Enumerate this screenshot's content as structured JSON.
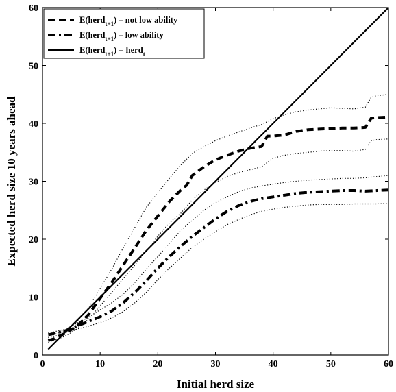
{
  "chart_data": {
    "type": "line",
    "title": "",
    "xlabel": "Initial herd size",
    "ylabel": "Expected herd size 10 years ahead",
    "xlim": [
      0,
      60
    ],
    "ylim": [
      0,
      60
    ],
    "xticks": [
      0,
      10,
      20,
      30,
      40,
      50,
      60
    ],
    "yticks": [
      0,
      10,
      20,
      30,
      40,
      50,
      60
    ],
    "grid": false,
    "legend_position": "top-left",
    "legend": [
      {
        "base": "E(herd",
        "sub": "t+1",
        "rest": ") – not low ability",
        "sub2": "",
        "style": "dashed"
      },
      {
        "base": "E(herd",
        "sub": "t+1",
        "rest": ") – low ability",
        "sub2": "",
        "style": "dashdot"
      },
      {
        "base": "E(herd",
        "sub": "t+1",
        "rest": ") = herd",
        "sub2": "t",
        "style": "solid"
      }
    ],
    "series": [
      {
        "key": "not_low",
        "style": "dashed",
        "x": [
          1,
          2,
          4,
          6,
          8,
          10,
          12,
          14,
          16,
          18,
          20,
          22,
          24,
          25,
          26,
          28,
          30,
          32,
          34,
          36,
          38,
          39,
          40,
          42,
          44,
          46,
          48,
          50,
          52,
          54,
          56,
          57,
          58,
          60
        ],
        "y": [
          2.5,
          2.8,
          3.8,
          5.0,
          7.0,
          9.8,
          12.5,
          15.5,
          18.5,
          21.5,
          24.0,
          26.5,
          28.5,
          29.3,
          31.0,
          32.5,
          33.7,
          34.5,
          35.2,
          35.7,
          36.0,
          37.8,
          37.8,
          38.0,
          38.6,
          38.9,
          39.0,
          39.1,
          39.2,
          39.2,
          39.3,
          40.9,
          41.0,
          41.1
        ]
      },
      {
        "key": "not_low_upper",
        "style": "dotted",
        "x": [
          1,
          2,
          4,
          6,
          8,
          10,
          12,
          14,
          16,
          18,
          20,
          22,
          24,
          26,
          28,
          30,
          32,
          34,
          36,
          38,
          40,
          42,
          44,
          46,
          48,
          50,
          52,
          54,
          56,
          57,
          58,
          60
        ],
        "y": [
          3.2,
          3.5,
          4.3,
          5.8,
          8.2,
          11.5,
          14.8,
          18.5,
          22.0,
          25.5,
          28.0,
          30.5,
          32.8,
          34.8,
          36.0,
          37.0,
          37.8,
          38.5,
          39.2,
          39.8,
          40.8,
          41.5,
          42.0,
          42.3,
          42.5,
          42.7,
          42.6,
          42.5,
          42.8,
          44.5,
          44.8,
          45.0
        ]
      },
      {
        "key": "not_low_lower",
        "style": "dotted",
        "x": [
          1,
          2,
          4,
          6,
          8,
          10,
          12,
          14,
          16,
          18,
          20,
          22,
          24,
          26,
          28,
          30,
          32,
          34,
          36,
          38,
          40,
          42,
          44,
          46,
          48,
          50,
          52,
          54,
          56,
          57,
          58,
          60
        ],
        "y": [
          2.2,
          2.5,
          3.3,
          4.5,
          6.2,
          8.5,
          10.8,
          13.2,
          15.5,
          18.0,
          20.5,
          22.8,
          24.5,
          26.8,
          28.5,
          29.8,
          30.8,
          31.5,
          32.0,
          32.5,
          34.0,
          34.5,
          34.8,
          35.0,
          35.2,
          35.3,
          35.3,
          35.2,
          35.5,
          37.0,
          37.2,
          37.3
        ]
      },
      {
        "key": "low",
        "style": "dashdot",
        "x": [
          1,
          2,
          4,
          6,
          8,
          10,
          12,
          14,
          16,
          18,
          20,
          22,
          24,
          26,
          28,
          30,
          32,
          34,
          36,
          38,
          40,
          42,
          44,
          46,
          48,
          50,
          52,
          54,
          56,
          58,
          60
        ],
        "y": [
          3.5,
          3.7,
          4.2,
          5.0,
          5.8,
          6.6,
          7.6,
          9.0,
          10.8,
          12.8,
          15.0,
          17.0,
          18.8,
          20.5,
          22.0,
          23.5,
          24.8,
          25.8,
          26.5,
          27.0,
          27.3,
          27.6,
          27.9,
          28.1,
          28.2,
          28.3,
          28.4,
          28.4,
          28.3,
          28.4,
          28.5
        ]
      },
      {
        "key": "low_upper",
        "style": "dotted",
        "x": [
          1,
          2,
          4,
          6,
          8,
          10,
          12,
          14,
          16,
          18,
          20,
          22,
          24,
          26,
          28,
          30,
          32,
          34,
          36,
          38,
          40,
          42,
          44,
          46,
          48,
          50,
          52,
          54,
          56,
          58,
          60
        ],
        "y": [
          3.8,
          4.0,
          4.5,
          5.5,
          6.5,
          7.8,
          9.0,
          10.5,
          12.5,
          14.8,
          17.0,
          19.3,
          21.5,
          23.3,
          25.0,
          26.3,
          27.3,
          28.2,
          28.8,
          29.2,
          29.5,
          29.8,
          30.0,
          30.2,
          30.3,
          30.4,
          30.5,
          30.5,
          30.6,
          30.8,
          31.0
        ]
      },
      {
        "key": "low_lower",
        "style": "dotted",
        "x": [
          1,
          2,
          4,
          6,
          8,
          10,
          12,
          14,
          16,
          18,
          20,
          22,
          24,
          26,
          28,
          30,
          32,
          34,
          36,
          38,
          40,
          42,
          44,
          46,
          48,
          50,
          52,
          54,
          56,
          58,
          60
        ],
        "y": [
          3.0,
          3.2,
          3.8,
          4.5,
          5.0,
          5.6,
          6.4,
          7.5,
          9.0,
          10.8,
          13.0,
          15.0,
          16.8,
          18.6,
          20.0,
          21.3,
          22.5,
          23.4,
          24.2,
          24.8,
          25.2,
          25.5,
          25.7,
          25.9,
          26.0,
          26.0,
          26.0,
          26.1,
          26.1,
          26.1,
          26.2
        ]
      },
      {
        "key": "identity",
        "style": "solid",
        "x": [
          1,
          60
        ],
        "y": [
          1,
          60
        ]
      }
    ]
  }
}
